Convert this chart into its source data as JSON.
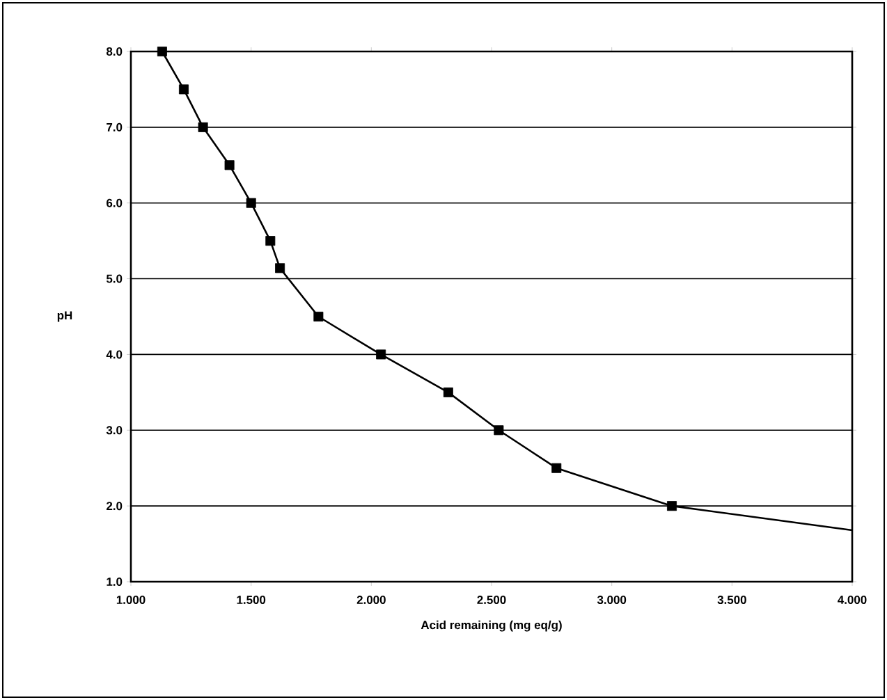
{
  "chart_data": {
    "type": "scatter",
    "xlabel": "Acid remaining (mg eq/g)",
    "ylabel": "pH",
    "xlim": [
      1,
      4
    ],
    "ylim": [
      1,
      8
    ],
    "xticks": [
      {
        "value": 1,
        "label": "1.000"
      },
      {
        "value": 1.5,
        "label": "1.500"
      },
      {
        "value": 2,
        "label": "2.000"
      },
      {
        "value": 2.5,
        "label": "2.500"
      },
      {
        "value": 3,
        "label": "3.000"
      },
      {
        "value": 3.5,
        "label": "3.500"
      },
      {
        "value": 4,
        "label": "4.000"
      }
    ],
    "yticks": [
      {
        "value": 1,
        "label": "1.0"
      },
      {
        "value": 2,
        "label": "2.0"
      },
      {
        "value": 3,
        "label": "3.0"
      },
      {
        "value": 4,
        "label": "4.0"
      },
      {
        "value": 5,
        "label": "5.0"
      },
      {
        "value": 6,
        "label": "6.0"
      },
      {
        "value": 7,
        "label": "7.0"
      },
      {
        "value": 8,
        "label": "8.0"
      }
    ],
    "grid": "y",
    "series": [
      {
        "type": "line",
        "marker": "none",
        "color": "#000000",
        "x": [
          1.13,
          1.22,
          1.3,
          1.41,
          1.5,
          1.58,
          1.62,
          1.78,
          2.04,
          2.32,
          2.53,
          2.77,
          3.25,
          4.0
        ],
        "values": [
          8.0,
          7.5,
          7.0,
          6.5,
          6.0,
          5.5,
          5.14,
          4.5,
          4.0,
          3.5,
          3.0,
          2.5,
          2.0,
          1.68
        ]
      },
      {
        "marker": "square",
        "color": "#000000",
        "x": [
          1.13,
          1.22,
          1.3,
          1.41,
          1.5,
          1.58,
          1.62,
          1.78,
          2.04,
          2.32,
          2.53,
          2.77,
          3.25
        ],
        "values": [
          8.0,
          7.5,
          7.0,
          6.5,
          6.0,
          5.5,
          5.14,
          4.5,
          4.0,
          3.5,
          3.0,
          2.5,
          2.0
        ]
      }
    ]
  }
}
